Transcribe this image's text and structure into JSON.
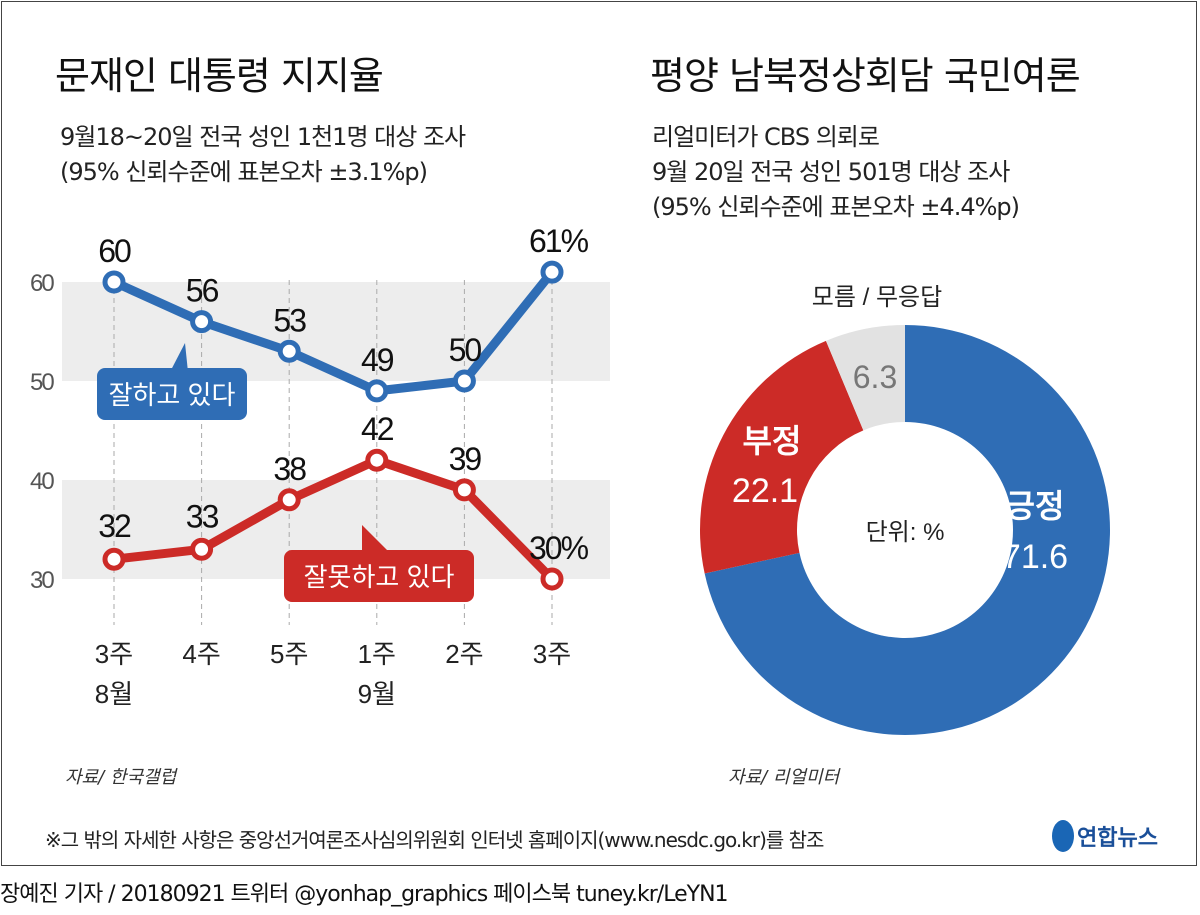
{
  "left": {
    "title": "문재인 대통령 지지율",
    "subtitle": [
      "9월18~20일 전국 성인 1천1명 대상 조사",
      "(95% 신뢰수준에 표본오차 ±3.1%p)"
    ],
    "source": "자료/ 한국갤럽"
  },
  "right": {
    "title": "평양 남북정상회담 국민여론",
    "subtitle": [
      "리얼미터가 CBS 의뢰로",
      "9월 20일 전국 성인 501명 대상 조사",
      "(95% 신뢰수준에 표본오차 ±4.4%p)"
    ],
    "source": "자료/ 리얼미터"
  },
  "footnote": "※그 밖의 자세한 사항은 중앙선거여론조사심의위원회 인터넷 홈페이지(www.nesdc.go.kr)를 참조",
  "logo": "연합뉴스",
  "credit": "장예진 기자 / 20180921 트위터 @yonhap_graphics  페이스북 tuney.kr/LeYN1",
  "chart_data": [
    {
      "type": "line",
      "categories": [
        "3주",
        "4주",
        "5주",
        "1주",
        "2주",
        "3주"
      ],
      "category_groups": [
        {
          "label": "8월",
          "at": 0
        },
        {
          "label": "9월",
          "at": 3
        }
      ],
      "ylim": [
        30,
        60
      ],
      "yticks": [
        30,
        40,
        50,
        60
      ],
      "grid": "bands",
      "series": [
        {
          "name": "잘하고 있다",
          "color": "#2f6db5",
          "values": [
            60,
            56,
            53,
            49,
            50,
            61
          ],
          "labels": [
            "60",
            "56",
            "53",
            "49",
            "50",
            "61%"
          ]
        },
        {
          "name": "잘못하고 있다",
          "color": "#cc2b27",
          "values": [
            32,
            33,
            38,
            42,
            39,
            30
          ],
          "labels": [
            "32",
            "33",
            "38",
            "42",
            "39",
            "30%"
          ]
        }
      ]
    },
    {
      "type": "pie",
      "donut": true,
      "unit_label": "단위: %",
      "annotation": "모름 / 무응답",
      "slices": [
        {
          "label": "긍정",
          "value": 71.6,
          "color": "#2f6db5"
        },
        {
          "label": "부정",
          "value": 22.1,
          "color": "#cc2b27"
        },
        {
          "label": "",
          "value": 6.3,
          "color": "#e2e2e2"
        }
      ]
    }
  ]
}
